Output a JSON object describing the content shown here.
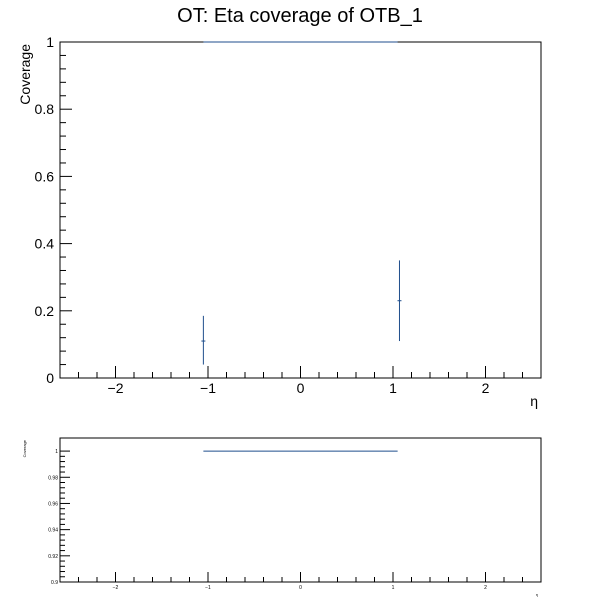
{
  "chart_data": [
    {
      "type": "scatter",
      "title": "OT: Eta coverage of OTB_1",
      "xlabel": "η",
      "ylabel": "Coverage",
      "xlim": [
        -2.6,
        2.6
      ],
      "ylim": [
        0,
        1
      ],
      "x_ticks": [
        "−2",
        "−1",
        "0",
        "1",
        "2"
      ],
      "y_ticks": [
        "0",
        "0.2",
        "0.4",
        "0.6",
        "0.8",
        "1"
      ],
      "series": [
        {
          "color": "#1f4e8c",
          "points": [
            {
              "x_low": -1.05,
              "x_high": 1.05,
              "y": 1.0,
              "y_err_low": 0,
              "y_err_high": 0
            },
            {
              "x": -1.05,
              "y": 0.11,
              "y_err_low": 0.07,
              "y_err_high": 0.075
            },
            {
              "x": 1.07,
              "y": 0.23,
              "y_err_low": 0.12,
              "y_err_high": 0.12
            }
          ]
        }
      ],
      "grid": false
    },
    {
      "type": "line",
      "title": "",
      "xlabel": "η",
      "ylabel": "Coverage",
      "xlim": [
        -2.6,
        2.6
      ],
      "ylim": [
        0.9,
        1.01
      ],
      "x_ticks": [
        "−2",
        "−1",
        "0",
        "1",
        "2"
      ],
      "y_ticks": [
        "0.9",
        "0.92",
        "0.94",
        "0.96",
        "0.98",
        "1"
      ],
      "series": [
        {
          "color": "#1f4e8c",
          "points": [
            {
              "x_low": -1.05,
              "x_high": 1.05,
              "y": 1.0
            }
          ]
        }
      ],
      "grid": false
    }
  ]
}
